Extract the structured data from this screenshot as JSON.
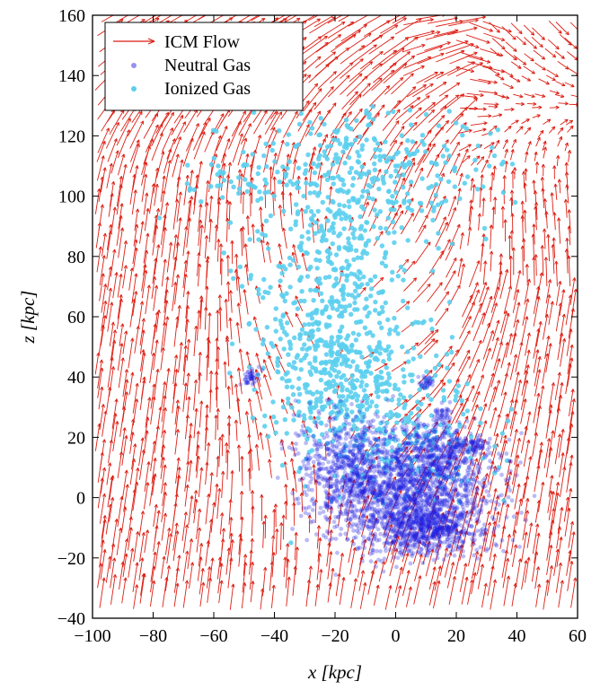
{
  "chart_data": {
    "type": "scatter",
    "title": "",
    "xlabel": "x [kpc]",
    "ylabel": "z [kpc]",
    "xlim": [
      -100,
      60
    ],
    "ylim": [
      -40,
      160
    ],
    "x_ticks": [
      "−100",
      "−80",
      "−60",
      "−40",
      "−20",
      "0",
      "20",
      "40",
      "60"
    ],
    "y_ticks": [
      "−40",
      "−20",
      "0",
      "20",
      "40",
      "60",
      "80",
      "100",
      "120",
      "140",
      "160"
    ],
    "grid": false,
    "legend_position": "top-left",
    "series": [
      {
        "name": "ICM Flow",
        "kind": "vector-field",
        "color": "#dd1f14",
        "description_points": [
          {
            "x": -95,
            "z": -30,
            "dx": 0.2,
            "dz": 1.0
          },
          {
            "x": -95,
            "z": 60,
            "dx": 0.1,
            "dz": 1.0
          },
          {
            "x": -80,
            "z": 130,
            "dx": 0.9,
            "dz": 0.4
          },
          {
            "x": -40,
            "z": 145,
            "dx": 1.0,
            "dz": 0.0
          },
          {
            "x": 0,
            "z": 145,
            "dx": 1.0,
            "dz": -0.2
          },
          {
            "x": 40,
            "z": 130,
            "dx": 0.6,
            "dz": -0.8
          },
          {
            "x": 50,
            "z": 60,
            "dx": 0.1,
            "dz": -1.0
          },
          {
            "x": 50,
            "z": -30,
            "dx": -0.1,
            "dz": 1.0
          }
        ]
      },
      {
        "name": "Neutral Gas",
        "kind": "points",
        "color": "#1f1fe0",
        "clusters": [
          {
            "x": 5,
            "z": 0,
            "sx": 13,
            "sz": 9
          },
          {
            "x": -15,
            "z": 10,
            "sx": 9,
            "sz": 9
          },
          {
            "x": 15,
            "z": 15,
            "sx": 7,
            "sz": 5
          },
          {
            "x": 10,
            "z": -10,
            "sx": 8,
            "sz": 4
          },
          {
            "x": -48,
            "z": 40,
            "sx": 1.5,
            "sz": 1.5
          },
          {
            "x": 10,
            "z": 38,
            "sx": 1.2,
            "sz": 1.2
          },
          {
            "x": 15,
            "z": 28,
            "sx": 1.5,
            "sz": 1.5
          },
          {
            "x": 25,
            "z": 17,
            "sx": 3,
            "sz": 2
          }
        ]
      },
      {
        "name": "Ionized Gas",
        "kind": "points",
        "color": "#5ccfee",
        "clusters": [
          {
            "x": -20,
            "z": 70,
            "sx": 13,
            "sz": 25
          },
          {
            "x": -10,
            "z": 110,
            "sx": 22,
            "sz": 10
          },
          {
            "x": -15,
            "z": 40,
            "sx": 14,
            "sz": 12
          },
          {
            "x": 5,
            "z": 20,
            "sx": 16,
            "sz": 10
          },
          {
            "x": -50,
            "z": 105,
            "sx": 10,
            "sz": 4
          }
        ]
      }
    ]
  },
  "legend": {
    "items": [
      {
        "label": "ICM Flow",
        "color": "#dd1f14"
      },
      {
        "label": "Neutral Gas",
        "color": "#7a78e8"
      },
      {
        "label": "Ionized Gas",
        "color": "#5ccfee"
      }
    ]
  }
}
